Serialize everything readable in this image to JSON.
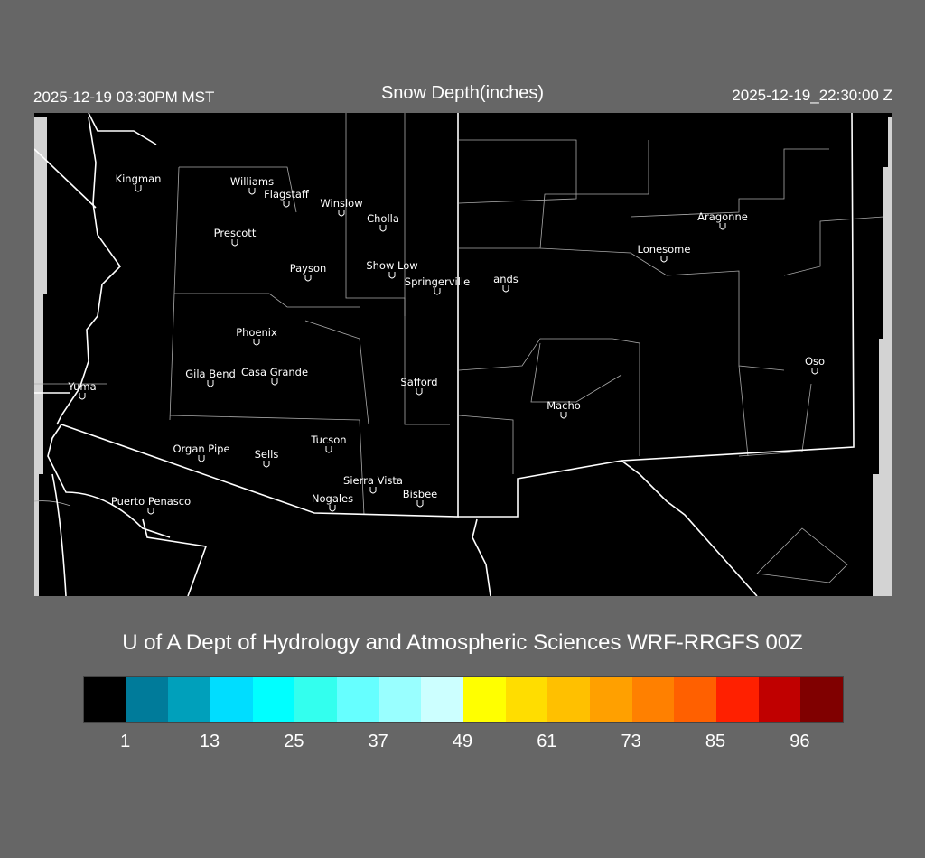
{
  "header": {
    "title": "Snow Depth(inches)",
    "local_time": "2025-12-19 03:30PM MST",
    "utc_time": "2025-12-19_22:30:00 Z"
  },
  "credit": "U of A Dept of Hydrology and Atmospheric Sciences WRF-RRGFS 00Z",
  "map": {
    "background": "#000000",
    "border_color": "#ffffff",
    "county_color": "#bbbbbb",
    "nodata_color": "#d3d3d3",
    "marker_glyph": "station-marker-icon",
    "cities": [
      "Kingman",
      "Williams",
      "Flagstaff",
      "Winslow",
      "Cholla",
      "Prescott",
      "Payson",
      "Show Low",
      "Springerville",
      "ands",
      "Lonesome",
      "Aragonne",
      "Phoenix",
      "Gila Bend",
      "Casa Grande",
      "Safford",
      "Yuma",
      "Oso",
      "Macho",
      "Tucson",
      "Organ Pipe",
      "Sells",
      "Sierra Vista",
      "Nogales",
      "Bisbee",
      "Puerto Penasco"
    ]
  },
  "legend": {
    "colors": [
      "#000000",
      "#007b9a",
      "#00a0bb",
      "#00ddff",
      "#00ffff",
      "#33ffee",
      "#66ffff",
      "#99ffff",
      "#ccffff",
      "#ffff00",
      "#ffdd00",
      "#ffc000",
      "#ffa000",
      "#ff8000",
      "#ff6000",
      "#ff2000",
      "#c00000",
      "#800000"
    ],
    "ticks": [
      "1",
      "13",
      "25",
      "37",
      "49",
      "61",
      "73",
      "85",
      "96"
    ]
  }
}
